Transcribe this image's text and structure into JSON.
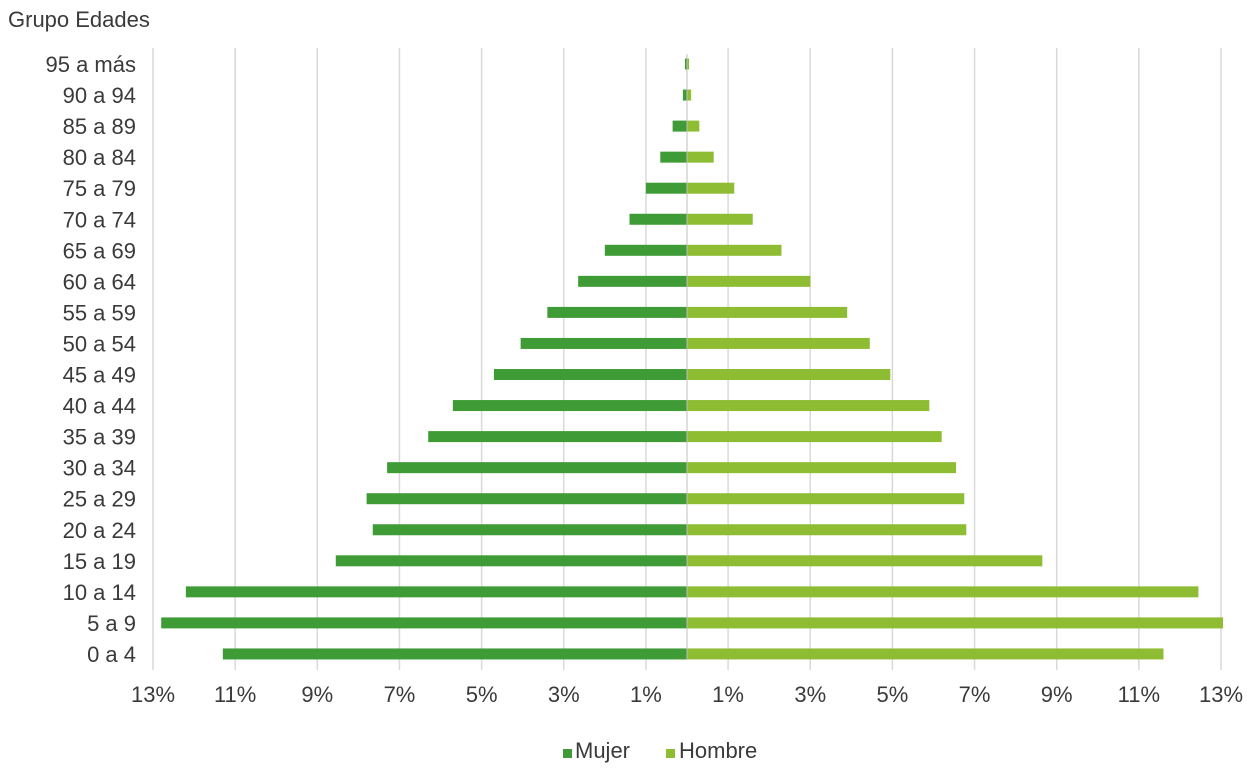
{
  "chart_data": {
    "type": "bar",
    "orientation": "horizontal",
    "layout": "population-pyramid",
    "ylabel": "Grupo Edades",
    "categories": [
      "95 a más",
      "90 a 94",
      "85 a 89",
      "80 a 84",
      "75 a 79",
      "70 a 74",
      "65 a 69",
      "60 a 64",
      "55 a 59",
      "50 a 54",
      "45 a 49",
      "40 a 44",
      "35 a 39",
      "30 a 34",
      "25 a 29",
      "20 a 24",
      "15 a 19",
      "10 a 14",
      "5 a 9",
      "0 a 4"
    ],
    "series": [
      {
        "name": "Mujer",
        "side": "left",
        "color": "#3f9b35",
        "values": [
          0.05,
          0.1,
          0.35,
          0.65,
          1.0,
          1.4,
          2.0,
          2.65,
          3.4,
          4.05,
          4.7,
          5.7,
          6.3,
          7.3,
          7.8,
          7.65,
          8.55,
          12.2,
          12.8,
          11.3
        ]
      },
      {
        "name": "Hombre",
        "side": "right",
        "color": "#8ebd33",
        "values": [
          0.05,
          0.1,
          0.3,
          0.65,
          1.15,
          1.6,
          2.3,
          3.0,
          3.9,
          4.45,
          4.95,
          5.9,
          6.2,
          6.55,
          6.75,
          6.8,
          8.65,
          12.45,
          13.05,
          11.6
        ]
      }
    ],
    "xlim": [
      -13,
      13
    ],
    "xticks": [
      -13,
      -11,
      -9,
      -7,
      -5,
      -3,
      -1,
      1,
      3,
      5,
      7,
      9,
      11,
      13
    ],
    "xtick_labels": [
      "13%",
      "11%",
      "9%",
      "7%",
      "5%",
      "3%",
      "1%",
      "1%",
      "3%",
      "5%",
      "7%",
      "9%",
      "11%",
      "13%"
    ],
    "grid": true,
    "grid_color": "#d9d9d9",
    "legend_position": "bottom-center"
  }
}
